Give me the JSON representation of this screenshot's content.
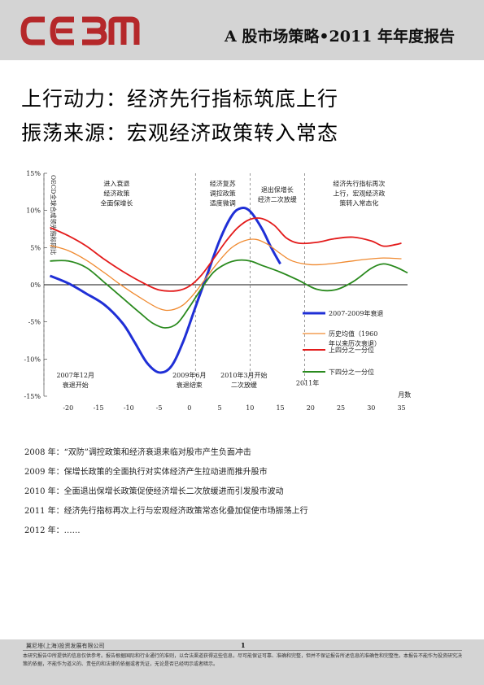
{
  "header": {
    "logo_text": "CEBM",
    "report_title": "A 股市场策略•2011 年年度报告"
  },
  "titles": {
    "line1": "上行动力：经济先行指标筑底上行",
    "line2": "振荡来源：宏观经济政策转入常态"
  },
  "chart_data": {
    "type": "line",
    "ylabel": "OECD全球合成领先指标同比",
    "xlabel": "月数",
    "ylim": [
      -15,
      15
    ],
    "xlim": [
      -24,
      36
    ],
    "y_ticks": [
      15,
      10,
      5,
      0,
      -5,
      -10,
      -15
    ],
    "y_tick_labels": [
      "15%",
      "10%",
      "5%",
      "0%",
      "-5%",
      "-10%",
      "-15%"
    ],
    "x_ticks": [
      -20,
      -15,
      -10,
      -5,
      0,
      5,
      10,
      15,
      20,
      25,
      30,
      35
    ],
    "series": [
      {
        "name": "2007-2009年衰退",
        "color": "#1f2fd6",
        "points": [
          [
            -23,
            1.2
          ],
          [
            -20,
            0.2
          ],
          [
            -17,
            -1.2
          ],
          [
            -14,
            -2.7
          ],
          [
            -11,
            -5.2
          ],
          [
            -9,
            -7.8
          ],
          [
            -7,
            -10.5
          ],
          [
            -5,
            -11.8
          ],
          [
            -3,
            -11.0
          ],
          [
            -1,
            -7.6
          ],
          [
            1,
            -3
          ],
          [
            3,
            1.5
          ],
          [
            5,
            6
          ],
          [
            7,
            9.3
          ],
          [
            8.5,
            10.3
          ],
          [
            10,
            9.9
          ],
          [
            12,
            7.5
          ],
          [
            13.5,
            5
          ],
          [
            15,
            2.8
          ]
        ]
      },
      {
        "name": "历史均值（1960年以来历次衰退）",
        "color": "#f08a30",
        "points": [
          [
            -23,
            5.3
          ],
          [
            -20,
            4.6
          ],
          [
            -17,
            3.3
          ],
          [
            -14,
            1.6
          ],
          [
            -11,
            -0.2
          ],
          [
            -8,
            -1.8
          ],
          [
            -5,
            -3.2
          ],
          [
            -3,
            -3.4
          ],
          [
            -1,
            -2.7
          ],
          [
            1,
            -1
          ],
          [
            3,
            1.2
          ],
          [
            5,
            3.3
          ],
          [
            7,
            5
          ],
          [
            9,
            5.9
          ],
          [
            11,
            6.1
          ],
          [
            13,
            5.4
          ],
          [
            15,
            4.2
          ],
          [
            17,
            3.2
          ],
          [
            20,
            2.7
          ],
          [
            23,
            2.8
          ],
          [
            26,
            3.1
          ],
          [
            29,
            3.4
          ],
          [
            32,
            3.6
          ],
          [
            35,
            3.5
          ]
        ]
      },
      {
        "name": "上四分之一分位",
        "color": "#e31b1b",
        "points": [
          [
            -23,
            7.7
          ],
          [
            -20,
            6.6
          ],
          [
            -17,
            5.2
          ],
          [
            -14,
            3.4
          ],
          [
            -11,
            1.8
          ],
          [
            -8,
            0.4
          ],
          [
            -5,
            -0.7
          ],
          [
            -2,
            -0.8
          ],
          [
            0,
            -0.2
          ],
          [
            2,
            1.3
          ],
          [
            4,
            3.5
          ],
          [
            6,
            5.8
          ],
          [
            8,
            7.7
          ],
          [
            10,
            8.8
          ],
          [
            12,
            8.9
          ],
          [
            14,
            8
          ],
          [
            16,
            6.3
          ],
          [
            18,
            5.6
          ],
          [
            21,
            5.7
          ],
          [
            24,
            6.2
          ],
          [
            27,
            6.4
          ],
          [
            30,
            5.9
          ],
          [
            32,
            5.2
          ],
          [
            34,
            5.4
          ],
          [
            35,
            5.6
          ]
        ]
      },
      {
        "name": "下四分之一分位",
        "color": "#2a8a1e",
        "points": [
          [
            -23,
            3.2
          ],
          [
            -20,
            3.2
          ],
          [
            -17,
            2.3
          ],
          [
            -14,
            0.3
          ],
          [
            -11,
            -1.8
          ],
          [
            -8,
            -3.9
          ],
          [
            -6,
            -5.2
          ],
          [
            -4,
            -5.8
          ],
          [
            -2,
            -5.2
          ],
          [
            0,
            -3
          ],
          [
            2,
            -0.5
          ],
          [
            4,
            1.7
          ],
          [
            6,
            2.8
          ],
          [
            8,
            3.3
          ],
          [
            10,
            3.2
          ],
          [
            12,
            2.6
          ],
          [
            15,
            1.7
          ],
          [
            18,
            0.6
          ],
          [
            21,
            -0.6
          ],
          [
            24,
            -0.7
          ],
          [
            27,
            0.4
          ],
          [
            30,
            2.2
          ],
          [
            32,
            2.8
          ],
          [
            34,
            2.4
          ],
          [
            36,
            1.6
          ]
        ]
      }
    ],
    "vlines": [
      -24,
      1,
      10,
      19
    ],
    "annotations": [
      {
        "lines": [
          "进入衰退",
          "经济政策",
          "全面保增长"
        ],
        "x": -12,
        "y": 13.3
      },
      {
        "lines": [
          "经济复苏",
          "调控政策",
          "适度微调"
        ],
        "x": 5.5,
        "y": 13.3
      },
      {
        "lines": [
          "退出保增长",
          "经济二次放缓"
        ],
        "x": 14.5,
        "y": 12.5
      },
      {
        "lines": [
          "经济先行指标再次",
          "上行，宏观经济政",
          "策转入常态化"
        ],
        "x": 28,
        "y": 13.3
      },
      {
        "lines": [
          "2007年12月",
          "衰退开始"
        ],
        "x": -18.8,
        "y": -12.5
      },
      {
        "lines": [
          "2009年6月",
          "衰退结束"
        ],
        "x": 0,
        "y": -12.5
      },
      {
        "lines": [
          "2010年3月开始",
          "二次放缓"
        ],
        "x": 9,
        "y": -12.5
      },
      {
        "lines": [
          "2011年"
        ],
        "x": 19.5,
        "y": -13.5
      }
    ],
    "legend_position": "bottom-right"
  },
  "events": [
    "2008 年：“双防”调控政策和经济衰退来临对股市产生负面冲击",
    "2009 年：保增长政策的全面执行对实体经济产生拉动进而推升股市",
    "2010 年：全面退出保增长政策促使经济增长二次放缓进而引发股市波动",
    "2011 年：经济先行指标再次上行与宏观经济政策常态化叠加促使市场振荡上行",
    "2012 年：……"
  ],
  "footer": {
    "company": "翼尼塔(上海)投资发展有限公司",
    "page": "1",
    "disclaimer": "本研究报告中所提供的信息仅供参考。报告根据国际和行业通行的准则，以合法渠道获得这些信息，尽可能保证可靠、准确和完整，但并不保证报告所述信息的准确性和完整性。本报告不能作为投资研究决策的依据，不能作为道义的、责任的和法律的依据或者凭证，无论是否已经明示或者暗示。"
  }
}
